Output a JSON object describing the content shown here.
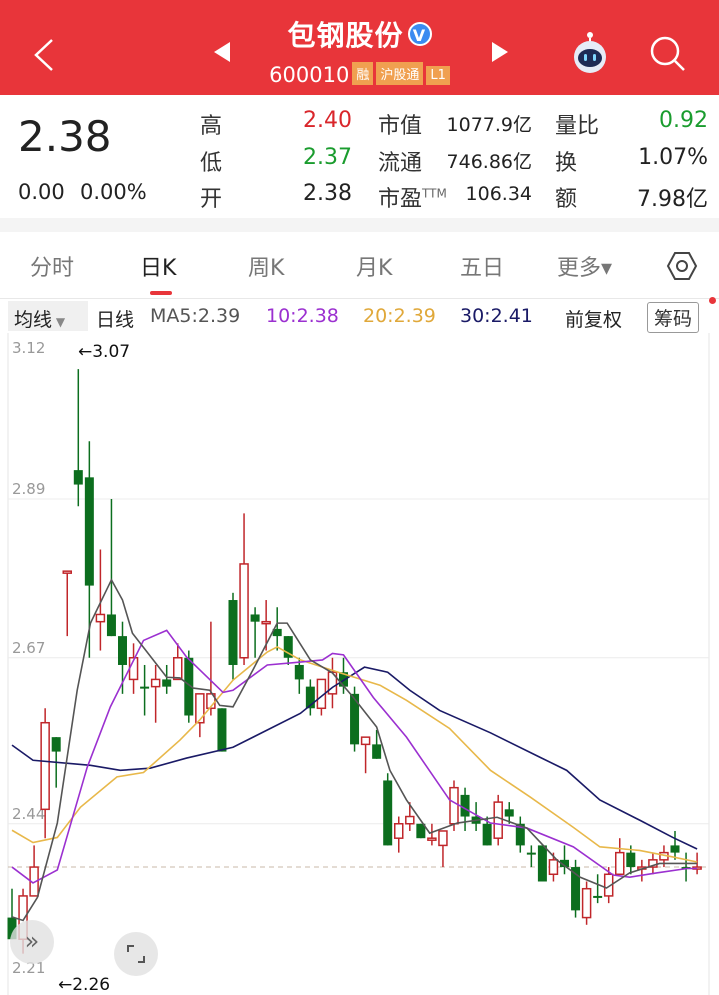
{
  "header": {
    "title": "包钢股份",
    "verified": "V",
    "code": "600010",
    "tags": [
      "融",
      "沪股通",
      "L1"
    ],
    "icons": [
      "back-chevron",
      "prev-stock-arrow",
      "next-stock-arrow",
      "robot-assistant",
      "search"
    ]
  },
  "quote": {
    "price": "2.38",
    "change": "0.00",
    "change_pct": "0.00%",
    "stats": [
      {
        "label": "高",
        "value": "2.40",
        "color": "#d9262b"
      },
      {
        "label": "低",
        "value": "2.37",
        "color": "#1a9c2e"
      },
      {
        "label": "开",
        "value": "2.38",
        "color": "#222222"
      },
      {
        "label": "市值",
        "value": "1077.9亿"
      },
      {
        "label": "流通",
        "value": "746.86亿"
      },
      {
        "label": "市盈",
        "sup": "TTM",
        "value": "106.34"
      },
      {
        "label": "量比",
        "value": "0.92",
        "color": "#1a9c2e"
      },
      {
        "label": "换",
        "value": "1.07%"
      },
      {
        "label": "额",
        "value": "7.98亿"
      }
    ]
  },
  "tabs": [
    {
      "label": "分时"
    },
    {
      "label": "日K",
      "active": true
    },
    {
      "label": "周K"
    },
    {
      "label": "月K"
    },
    {
      "label": "五日"
    },
    {
      "label": "更多▾"
    }
  ],
  "ma_bar": {
    "selector": "均线",
    "period": "日线",
    "ma5": "MA5:2.39",
    "ma10": "10:2.38",
    "ma20": "20:2.39",
    "ma30": "30:2.41",
    "adjust": "前复权",
    "chips": "筹码"
  },
  "colors": {
    "header": "#e8353a",
    "up": "#c0262a",
    "down": "#0c6e1e",
    "ma5": "#555555",
    "ma10": "#9b30d0",
    "ma20": "#e8b84a",
    "ma30": "#1a1a66"
  },
  "chart_data": {
    "type": "candlestick",
    "y_ticks": [
      "3.12",
      "2.89",
      "2.67",
      "2.44",
      "2.21"
    ],
    "ylim": [
      2.21,
      3.12
    ],
    "high_marker": "←3.07",
    "low_marker": "←2.26",
    "current_price_line": 2.38,
    "candles_ohlc": [
      [
        2.31,
        2.35,
        2.28,
        2.28,
        "d"
      ],
      [
        2.28,
        2.35,
        2.26,
        2.34,
        "u"
      ],
      [
        2.34,
        2.41,
        2.34,
        2.38,
        "u"
      ],
      [
        2.46,
        2.6,
        2.42,
        2.58,
        "u"
      ],
      [
        2.56,
        2.56,
        2.49,
        2.54,
        "d"
      ],
      [
        2.79,
        2.79,
        2.7,
        2.79,
        "u"
      ],
      [
        2.93,
        3.07,
        2.88,
        2.91,
        "d"
      ],
      [
        2.92,
        2.97,
        2.67,
        2.77,
        "d"
      ],
      [
        2.72,
        2.82,
        2.68,
        2.73,
        "u"
      ],
      [
        2.73,
        2.89,
        2.7,
        2.7,
        "d"
      ],
      [
        2.7,
        2.72,
        2.62,
        2.66,
        "d"
      ],
      [
        2.64,
        2.69,
        2.62,
        2.67,
        "u"
      ],
      [
        2.63,
        2.66,
        2.59,
        2.63,
        "d"
      ],
      [
        2.63,
        2.66,
        2.58,
        2.64,
        "u"
      ],
      [
        2.64,
        2.66,
        2.62,
        2.63,
        "d"
      ],
      [
        2.64,
        2.69,
        2.64,
        2.67,
        "u"
      ],
      [
        2.67,
        2.68,
        2.58,
        2.59,
        "d"
      ],
      [
        2.58,
        2.62,
        2.56,
        2.62,
        "u"
      ],
      [
        2.6,
        2.72,
        2.59,
        2.62,
        "u"
      ],
      [
        2.6,
        2.6,
        2.54,
        2.54,
        "d"
      ],
      [
        2.75,
        2.76,
        2.64,
        2.66,
        "d"
      ],
      [
        2.67,
        2.87,
        2.66,
        2.8,
        "u"
      ],
      [
        2.73,
        2.74,
        2.67,
        2.72,
        "d"
      ],
      [
        2.72,
        2.75,
        2.68,
        2.72,
        "u"
      ],
      [
        2.71,
        2.74,
        2.68,
        2.7,
        "d"
      ],
      [
        2.7,
        2.7,
        2.66,
        2.67,
        "d"
      ],
      [
        2.66,
        2.67,
        2.62,
        2.64,
        "d"
      ],
      [
        2.63,
        2.64,
        2.59,
        2.6,
        "d"
      ],
      [
        2.6,
        2.64,
        2.59,
        2.64,
        "u"
      ],
      [
        2.62,
        2.67,
        2.6,
        2.65,
        "u"
      ],
      [
        2.65,
        2.67,
        2.62,
        2.63,
        "d"
      ],
      [
        2.62,
        2.63,
        2.54,
        2.55,
        "d"
      ],
      [
        2.55,
        2.56,
        2.51,
        2.56,
        "u"
      ],
      [
        2.55,
        2.57,
        2.53,
        2.53,
        "d"
      ],
      [
        2.5,
        2.51,
        2.41,
        2.41,
        "d"
      ],
      [
        2.42,
        2.45,
        2.4,
        2.44,
        "u"
      ],
      [
        2.44,
        2.47,
        2.43,
        2.45,
        "u"
      ],
      [
        2.44,
        2.44,
        2.42,
        2.42,
        "d"
      ],
      [
        2.42,
        2.44,
        2.41,
        2.42,
        "u"
      ],
      [
        2.41,
        2.43,
        2.38,
        2.43,
        "u"
      ],
      [
        2.44,
        2.5,
        2.43,
        2.49,
        "u"
      ],
      [
        2.48,
        2.49,
        2.43,
        2.45,
        "d"
      ],
      [
        2.45,
        2.47,
        2.43,
        2.44,
        "d"
      ],
      [
        2.44,
        2.45,
        2.41,
        2.41,
        "d"
      ],
      [
        2.42,
        2.48,
        2.41,
        2.47,
        "u"
      ],
      [
        2.46,
        2.47,
        2.44,
        2.45,
        "d"
      ],
      [
        2.44,
        2.45,
        2.4,
        2.41,
        "d"
      ],
      [
        2.4,
        2.41,
        2.38,
        2.4,
        "d"
      ],
      [
        2.41,
        2.41,
        2.36,
        2.36,
        "d"
      ],
      [
        2.37,
        2.4,
        2.36,
        2.39,
        "u"
      ],
      [
        2.39,
        2.41,
        2.37,
        2.38,
        "d"
      ],
      [
        2.38,
        2.39,
        2.31,
        2.32,
        "d"
      ],
      [
        2.31,
        2.36,
        2.3,
        2.35,
        "u"
      ],
      [
        2.34,
        2.37,
        2.33,
        2.34,
        "d"
      ],
      [
        2.34,
        2.38,
        2.33,
        2.37,
        "u"
      ],
      [
        2.37,
        2.42,
        2.37,
        2.4,
        "u"
      ],
      [
        2.4,
        2.41,
        2.37,
        2.38,
        "d"
      ],
      [
        2.38,
        2.39,
        2.36,
        2.38,
        "u"
      ],
      [
        2.38,
        2.4,
        2.37,
        2.39,
        "u"
      ],
      [
        2.39,
        2.41,
        2.38,
        2.4,
        "u"
      ],
      [
        2.41,
        2.43,
        2.39,
        2.4,
        "d"
      ],
      [
        2.38,
        2.4,
        2.36,
        2.38,
        "d"
      ],
      [
        2.38,
        2.4,
        2.37,
        2.38,
        "u"
      ]
    ],
    "ma_lines": {
      "ma5": [
        [
          1,
          2.311
        ],
        [
          2,
          2.306
        ],
        [
          3.3,
          2.338
        ],
        [
          5.1,
          2.441
        ],
        [
          6.9,
          2.625
        ],
        [
          8.1,
          2.718
        ],
        [
          10,
          2.778
        ],
        [
          11,
          2.75
        ],
        [
          11.9,
          2.704
        ],
        [
          15,
          2.643
        ],
        [
          16.2,
          2.642
        ],
        [
          17.4,
          2.628
        ],
        [
          18.9,
          2.625
        ],
        [
          19.8,
          2.604
        ],
        [
          21,
          2.602
        ],
        [
          22.8,
          2.653
        ],
        [
          25,
          2.718
        ],
        [
          25.9,
          2.718
        ],
        [
          28,
          2.667
        ],
        [
          30,
          2.649
        ],
        [
          31.9,
          2.615
        ],
        [
          34,
          2.574
        ],
        [
          35.2,
          2.514
        ],
        [
          36.7,
          2.473
        ],
        [
          38.8,
          2.427
        ],
        [
          41.3,
          2.441
        ],
        [
          44.9,
          2.449
        ],
        [
          47.6,
          2.434
        ],
        [
          50.3,
          2.39
        ],
        [
          52.4,
          2.366
        ],
        [
          54.8,
          2.351
        ],
        [
          56.9,
          2.372
        ],
        [
          59.6,
          2.385
        ],
        [
          63,
          2.385
        ]
      ],
      "ma10": [
        [
          1,
          2.38
        ],
        [
          2.9,
          2.358
        ],
        [
          5.1,
          2.376
        ],
        [
          7.8,
          2.518
        ],
        [
          9.9,
          2.602
        ],
        [
          12.9,
          2.694
        ],
        [
          15,
          2.708
        ],
        [
          16.8,
          2.671
        ],
        [
          20.1,
          2.622
        ],
        [
          21,
          2.625
        ],
        [
          24.1,
          2.66
        ],
        [
          27.1,
          2.664
        ],
        [
          29.1,
          2.667
        ],
        [
          30,
          2.676
        ],
        [
          31,
          2.674
        ],
        [
          33.7,
          2.615
        ],
        [
          36.7,
          2.56
        ],
        [
          40.6,
          2.473
        ],
        [
          44.3,
          2.441
        ],
        [
          47.6,
          2.434
        ],
        [
          51.8,
          2.408
        ],
        [
          55.4,
          2.369
        ],
        [
          56.9,
          2.366
        ],
        [
          59.4,
          2.372
        ],
        [
          62.1,
          2.378
        ],
        [
          63,
          2.378
        ]
      ],
      "ma20": [
        [
          1,
          2.431
        ],
        [
          2.9,
          2.414
        ],
        [
          5.1,
          2.421
        ],
        [
          7.2,
          2.463
        ],
        [
          10.5,
          2.505
        ],
        [
          12.9,
          2.511
        ],
        [
          16.2,
          2.556
        ],
        [
          18,
          2.584
        ],
        [
          21,
          2.639
        ],
        [
          24.1,
          2.678
        ],
        [
          25,
          2.685
        ],
        [
          27.1,
          2.667
        ],
        [
          30.7,
          2.649
        ],
        [
          34.3,
          2.632
        ],
        [
          36.7,
          2.611
        ],
        [
          40.6,
          2.572
        ],
        [
          44.3,
          2.514
        ],
        [
          47.9,
          2.477
        ],
        [
          51.8,
          2.435
        ],
        [
          54.2,
          2.408
        ],
        [
          57.8,
          2.403
        ],
        [
          60.8,
          2.394
        ],
        [
          63,
          2.387
        ]
      ],
      "ma30": [
        [
          1,
          2.549
        ],
        [
          2.9,
          2.528
        ],
        [
          8.1,
          2.521
        ],
        [
          10.8,
          2.514
        ],
        [
          13.5,
          2.517
        ],
        [
          16.8,
          2.531
        ],
        [
          21,
          2.546
        ],
        [
          27.1,
          2.593
        ],
        [
          30,
          2.629
        ],
        [
          32.9,
          2.657
        ],
        [
          35,
          2.65
        ],
        [
          37,
          2.625
        ],
        [
          39.7,
          2.597
        ],
        [
          44.3,
          2.566
        ],
        [
          48.8,
          2.532
        ],
        [
          51.2,
          2.514
        ],
        [
          54.2,
          2.473
        ],
        [
          57.8,
          2.445
        ],
        [
          60.8,
          2.421
        ],
        [
          63,
          2.405
        ]
      ]
    },
    "grid": true
  }
}
